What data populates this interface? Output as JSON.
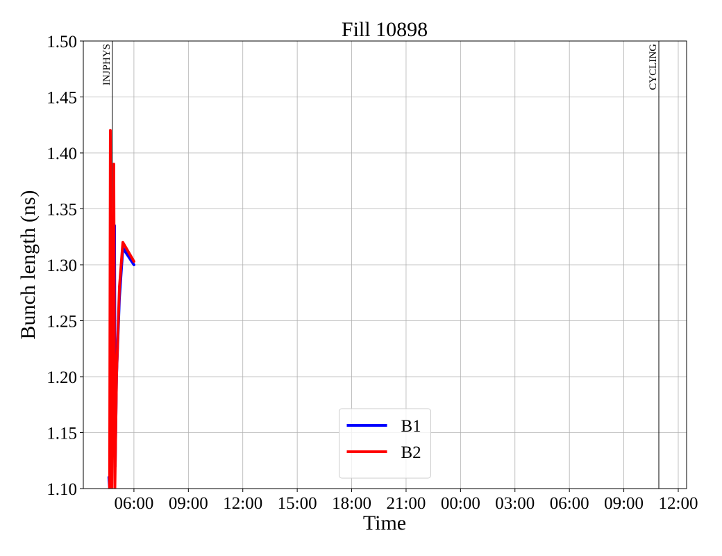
{
  "chart_data": {
    "type": "line",
    "title": "Fill 10898",
    "xlabel": "Time",
    "ylabel": "Bunch length (ns)",
    "xlim": [
      3.21,
      36.46
    ],
    "ylim": [
      1.1,
      1.5
    ],
    "xticks": [
      {
        "value": 6,
        "label": "06:00"
      },
      {
        "value": 9,
        "label": "09:00"
      },
      {
        "value": 12,
        "label": "12:00"
      },
      {
        "value": 15,
        "label": "15:00"
      },
      {
        "value": 18,
        "label": "18:00"
      },
      {
        "value": 21,
        "label": "21:00"
      },
      {
        "value": 24,
        "label": "00:00"
      },
      {
        "value": 27,
        "label": "03:00"
      },
      {
        "value": 30,
        "label": "06:00"
      },
      {
        "value": 33,
        "label": "09:00"
      },
      {
        "value": 36,
        "label": "12:00"
      }
    ],
    "yticks": [
      {
        "value": 1.1,
        "label": "1.10"
      },
      1.15,
      {
        "value": 1.2,
        "label": "1.20"
      },
      1.25,
      {
        "value": 1.3,
        "label": "1.30"
      },
      1.35,
      {
        "value": 1.4,
        "label": "1.40"
      },
      1.45,
      {
        "value": 1.5,
        "label": "1.50"
      }
    ],
    "grid": true,
    "legend": "lower center",
    "annotations": [
      {
        "text": "INJPHYS",
        "x": 4.81
      },
      {
        "text": "CYCLING",
        "x": 34.93
      }
    ],
    "series": [
      {
        "name": "B1",
        "color": "#0000ff",
        "x": [
          4.62,
          4.66,
          4.93,
          4.97,
          5.04,
          5.2,
          5.39,
          6.0
        ],
        "values": [
          1.11,
          1.1,
          1.335,
          1.12,
          1.2,
          1.27,
          1.315,
          1.3
        ]
      },
      {
        "name": "B2",
        "color": "#ff0000",
        "x": [
          4.66,
          4.7,
          4.78,
          4.89,
          4.95,
          5.04,
          5.2,
          5.39,
          6.0
        ],
        "values": [
          1.1,
          1.42,
          1.1,
          1.39,
          1.1,
          1.2,
          1.28,
          1.32,
          1.303
        ]
      }
    ]
  }
}
